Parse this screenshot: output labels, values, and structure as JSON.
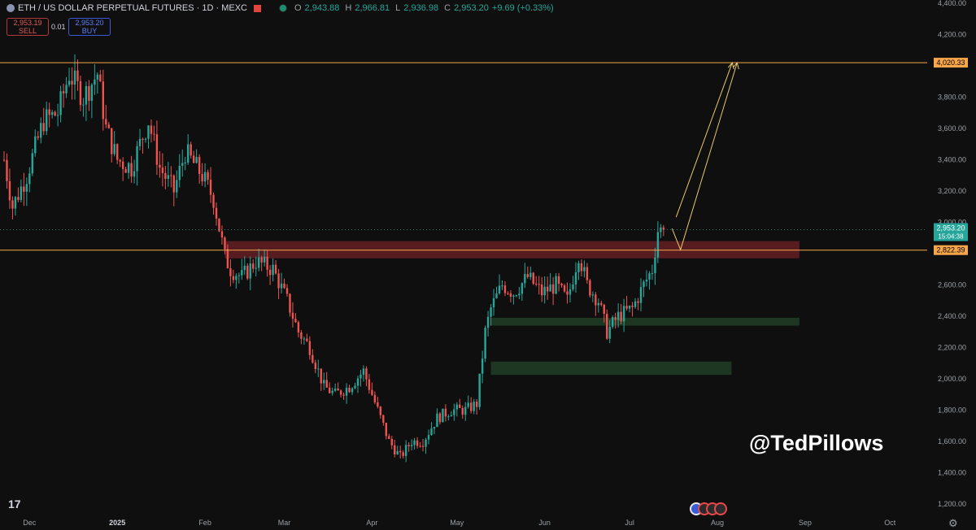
{
  "header": {
    "symbol_title": "ETH / US DOLLAR PERPETUAL FUTURES · 1D · MEXC",
    "o_label": "O",
    "o_value": "2,943.88",
    "h_label": "H",
    "h_value": "2,966.81",
    "l_label": "L",
    "l_value": "2,936.98",
    "c_label": "C",
    "c_value": "2,953.20",
    "change": "+9.69 (+0.33%)"
  },
  "trade": {
    "sell_price": "2,953.19",
    "sell_label": "SELL",
    "spread": "0.01",
    "buy_price": "2,953.20",
    "buy_label": "BUY"
  },
  "watermark": "@TedPillows",
  "logo_text": "17",
  "colors": {
    "up": "#26a69a",
    "down": "#ef5350",
    "level": "#f7a64a",
    "red_zone": "#5c1d22",
    "green_zone": "#1f3a24"
  },
  "chart_data": {
    "type": "candlestick",
    "y_ticks": [
      "4,400.00",
      "4,200.00",
      "4,020.33",
      "3,800.00",
      "3,600.00",
      "3,400.00",
      "3,200.00",
      "3,000.00",
      "2,953.20",
      "2,822.39",
      "2,600.00",
      "2,400.00",
      "2,200.00",
      "2,000.00",
      "1,800.00",
      "1,600.00",
      "1,400.00",
      "1,200.00"
    ],
    "y_tick_values": [
      4400,
      4200,
      null,
      3800,
      3600,
      3400,
      3200,
      3000,
      null,
      null,
      2600,
      2400,
      2200,
      2000,
      1800,
      1600,
      1400,
      1200
    ],
    "ylim": [
      1200,
      4400
    ],
    "x_ticks": [
      {
        "label": "Dec",
        "day": 9
      },
      {
        "label": "2025",
        "day": 40
      },
      {
        "label": "Feb",
        "day": 71
      },
      {
        "label": "Mar",
        "day": 99
      },
      {
        "label": "Apr",
        "day": 130
      },
      {
        "label": "May",
        "day": 160
      },
      {
        "label": "Jun",
        "day": 191
      },
      {
        "label": "Jul",
        "day": 221
      },
      {
        "label": "Aug",
        "day": 252
      },
      {
        "label": "Sep",
        "day": 283
      },
      {
        "label": "Oct",
        "day": 313
      }
    ],
    "levels": [
      {
        "value": 4020.33,
        "label": "4,020.33"
      },
      {
        "value": 2822.39,
        "label": "2,822.39"
      }
    ],
    "current_price": {
      "value": 2953.2,
      "label": "2,953.20",
      "countdown": "15:04:38"
    },
    "zones": [
      {
        "kind": "resistance",
        "start_day": 78,
        "end_day": 281,
        "low": 2770,
        "high": 2880
      },
      {
        "kind": "support",
        "start_day": 172,
        "end_day": 281,
        "low": 2340,
        "high": 2390
      },
      {
        "kind": "support",
        "start_day": 172,
        "end_day": 257,
        "low": 2025,
        "high": 2110
      }
    ],
    "projection": {
      "start_day": 236,
      "start_value": 2960,
      "dip_day": 239,
      "dip_value": 2825,
      "target_day": 259,
      "target_value": 4020.33
    },
    "waypoints": [
      {
        "day": 0,
        "value": 3400
      },
      {
        "day": 3,
        "value": 3100
      },
      {
        "day": 8,
        "value": 3300
      },
      {
        "day": 14,
        "value": 3650
      },
      {
        "day": 19,
        "value": 3700
      },
      {
        "day": 23,
        "value": 3950
      },
      {
        "day": 28,
        "value": 3800
      },
      {
        "day": 33,
        "value": 3950
      },
      {
        "day": 36,
        "value": 3600
      },
      {
        "day": 40,
        "value": 3400
      },
      {
        "day": 45,
        "value": 3350
      },
      {
        "day": 51,
        "value": 3650
      },
      {
        "day": 55,
        "value": 3350
      },
      {
        "day": 60,
        "value": 3200
      },
      {
        "day": 64,
        "value": 3450
      },
      {
        "day": 70,
        "value": 3300
      },
      {
        "day": 74,
        "value": 3150
      },
      {
        "day": 78,
        "value": 2780
      },
      {
        "day": 80,
        "value": 2700
      },
      {
        "day": 84,
        "value": 2650
      },
      {
        "day": 89,
        "value": 2750
      },
      {
        "day": 95,
        "value": 2700
      },
      {
        "day": 100,
        "value": 2500
      },
      {
        "day": 104,
        "value": 2300
      },
      {
        "day": 108,
        "value": 2200
      },
      {
        "day": 113,
        "value": 1950
      },
      {
        "day": 117,
        "value": 1900
      },
      {
        "day": 122,
        "value": 1950
      },
      {
        "day": 127,
        "value": 2050
      },
      {
        "day": 131,
        "value": 1850
      },
      {
        "day": 136,
        "value": 1600
      },
      {
        "day": 140,
        "value": 1500
      },
      {
        "day": 144,
        "value": 1600
      },
      {
        "day": 148,
        "value": 1600
      },
      {
        "day": 153,
        "value": 1750
      },
      {
        "day": 158,
        "value": 1800
      },
      {
        "day": 163,
        "value": 1800
      },
      {
        "day": 167,
        "value": 1840
      },
      {
        "day": 170,
        "value": 2300
      },
      {
        "day": 172,
        "value": 2450
      },
      {
        "day": 176,
        "value": 2600
      },
      {
        "day": 180,
        "value": 2550
      },
      {
        "day": 185,
        "value": 2650
      },
      {
        "day": 190,
        "value": 2550
      },
      {
        "day": 195,
        "value": 2600
      },
      {
        "day": 199,
        "value": 2500
      },
      {
        "day": 203,
        "value": 2800
      },
      {
        "day": 206,
        "value": 2600
      },
      {
        "day": 210,
        "value": 2500
      },
      {
        "day": 213,
        "value": 2300
      },
      {
        "day": 217,
        "value": 2400
      },
      {
        "day": 222,
        "value": 2450
      },
      {
        "day": 226,
        "value": 2600
      },
      {
        "day": 229,
        "value": 2700
      },
      {
        "day": 231,
        "value": 2950
      },
      {
        "day": 233,
        "value": 2953.2
      }
    ]
  }
}
